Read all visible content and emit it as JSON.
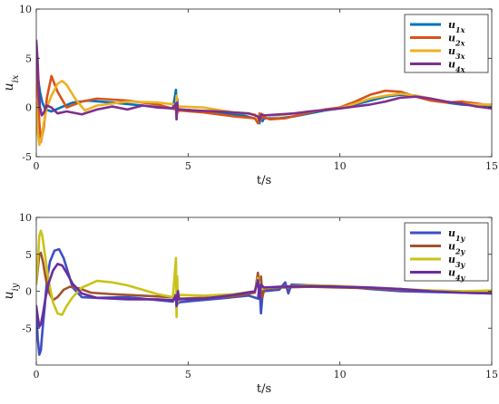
{
  "chart_data": [
    {
      "type": "line",
      "xlabel": "t/s",
      "ylabel": "u_{ix}",
      "xlim": [
        0,
        15
      ],
      "ylim": [
        -5,
        10
      ],
      "xticks": [
        "0",
        "5",
        "10",
        "15"
      ],
      "yticks": [
        "-5",
        "0",
        "5",
        "10"
      ],
      "grid": false,
      "legend_position": "top-right",
      "series": [
        {
          "name": "u_{1x}",
          "color": "#0072BD",
          "x": [
            0,
            0.05,
            0.12,
            0.2,
            0.3,
            0.5,
            0.8,
            1.2,
            1.7,
            2.5,
            3.5,
            4.5,
            4.6,
            4.62,
            4.64,
            4.66,
            4.7,
            5.2,
            6,
            6.8,
            7.3,
            7.35,
            7.4,
            7.45,
            7.5,
            8,
            8.5,
            9,
            9.5,
            10,
            10.5,
            11,
            11.5,
            12,
            12.5,
            13,
            13.5,
            14,
            14.5,
            15
          ],
          "y": [
            6.5,
            3.2,
            1.6,
            0.5,
            -0.2,
            -0.4,
            0.0,
            0.5,
            0.7,
            0.5,
            0.2,
            -0.1,
            1.8,
            -1.2,
            0.9,
            -0.4,
            -0.2,
            -0.3,
            -0.5,
            -0.8,
            -1.2,
            -1.6,
            -0.6,
            -1.4,
            -1.1,
            -1.1,
            -0.9,
            -0.6,
            -0.3,
            -0.1,
            0.3,
            0.7,
            1.1,
            1.3,
            1.2,
            0.9,
            0.5,
            0.3,
            0.2,
            0.1
          ]
        },
        {
          "name": "u_{2x}",
          "color": "#D95319",
          "x": [
            0,
            0.05,
            0.1,
            0.15,
            0.25,
            0.35,
            0.5,
            0.7,
            1,
            1.5,
            2,
            3,
            4,
            4.6,
            4.62,
            4.64,
            4.7,
            5.5,
            6.5,
            7.2,
            7.3,
            7.35,
            7.4,
            7.45,
            7.5,
            7.7,
            8.2,
            9,
            9.5,
            10,
            10.5,
            11,
            11.5,
            12,
            12.5,
            13,
            13.5,
            14,
            14.5,
            15
          ],
          "y": [
            4.5,
            1.5,
            -1.5,
            -3.5,
            -2.0,
            1.0,
            3.2,
            1.6,
            0.0,
            0.6,
            0.9,
            0.7,
            0.3,
            -0.2,
            1.0,
            -0.6,
            -0.3,
            -0.5,
            -0.9,
            -1.1,
            -1.6,
            -0.6,
            -1.3,
            -0.9,
            -1.0,
            -1.2,
            -1.1,
            -0.5,
            -0.2,
            0.0,
            0.6,
            1.3,
            1.7,
            1.6,
            1.1,
            0.7,
            0.5,
            0.6,
            0.4,
            0.2
          ]
        },
        {
          "name": "u_{3x}",
          "color": "#EDB120",
          "x": [
            0,
            0.05,
            0.1,
            0.18,
            0.25,
            0.35,
            0.5,
            0.7,
            0.85,
            1.0,
            1.3,
            1.6,
            2.0,
            3.0,
            4.0,
            4.6,
            4.62,
            4.64,
            4.7,
            5.5,
            6.5,
            7.2,
            7.3,
            7.4,
            7.5,
            8.0,
            9.0,
            10.0,
            10.5,
            11.0,
            11.5,
            12.0,
            12.5,
            13.0,
            13.5,
            14.0,
            14.5,
            15
          ],
          "y": [
            0.5,
            -2.5,
            -3.8,
            -3.0,
            -1.5,
            0.0,
            1.2,
            2.4,
            2.7,
            2.3,
            0.8,
            -0.3,
            0.2,
            0.6,
            0.5,
            0.3,
            1.2,
            -0.6,
            0.1,
            0.0,
            -0.5,
            -0.7,
            -1.2,
            -0.6,
            -0.8,
            -0.8,
            -0.4,
            -0.1,
            0.4,
            0.9,
            1.2,
            1.4,
            1.2,
            0.9,
            0.6,
            0.4,
            0.3,
            0.3
          ]
        },
        {
          "name": "u_{4x}",
          "color": "#7E2F8E",
          "x": [
            0,
            0.04,
            0.08,
            0.12,
            0.18,
            0.25,
            0.35,
            0.5,
            0.7,
            1.0,
            1.5,
            2.0,
            2.5,
            3.0,
            3.5,
            4.0,
            4.5,
            4.6,
            4.62,
            4.64,
            4.66,
            4.7,
            5.2,
            6.0,
            7.0,
            7.3,
            7.35,
            7.4,
            7.5,
            8.0,
            8.5,
            9.0,
            10.0,
            10.5,
            11.0,
            11.5,
            12.0,
            12.5,
            13.0,
            13.5,
            14.0,
            14.5,
            15
          ],
          "y": [
            6.8,
            5.0,
            2.0,
            0.0,
            -0.8,
            -0.5,
            0.2,
            0.0,
            -0.6,
            -0.4,
            -0.7,
            -0.2,
            0.1,
            -0.2,
            0.2,
            0.0,
            -0.1,
            0.4,
            -1.2,
            0.5,
            -0.3,
            -0.2,
            -0.3,
            -0.4,
            -0.6,
            -0.9,
            -1.3,
            -0.7,
            -0.8,
            -0.7,
            -0.6,
            -0.4,
            -0.1,
            0.1,
            0.3,
            0.6,
            1.0,
            1.1,
            0.9,
            0.6,
            0.4,
            0.1,
            -0.1
          ]
        }
      ]
    },
    {
      "type": "line",
      "xlabel": "t/s",
      "ylabel": "u_{iy}",
      "xlim": [
        0,
        15
      ],
      "ylim": [
        -10,
        10
      ],
      "xticks": [
        "0",
        "5",
        "10",
        "15"
      ],
      "yticks": [
        "-5",
        "0",
        "5",
        "10"
      ],
      "grid": false,
      "legend_position": "top-right",
      "series": [
        {
          "name": "u_{1y}",
          "color": "#3E4FC4",
          "x": [
            0,
            0.05,
            0.1,
            0.15,
            0.2,
            0.28,
            0.35,
            0.45,
            0.6,
            0.75,
            0.9,
            1.05,
            1.2,
            1.5,
            2.0,
            3.0,
            4.0,
            4.5,
            4.6,
            4.62,
            4.64,
            4.66,
            4.7,
            5.2,
            6.0,
            7.0,
            7.3,
            7.35,
            7.4,
            7.45,
            7.5,
            8.0,
            8.2,
            8.3,
            8.4,
            9.0,
            10.0,
            10.5,
            11.0,
            12.0,
            13.0,
            14.0,
            15.0
          ],
          "y": [
            -3.0,
            -6.5,
            -8.6,
            -8.0,
            -5.5,
            -2.0,
            1.5,
            4.0,
            5.5,
            5.7,
            4.5,
            2.5,
            0.5,
            -0.8,
            -0.9,
            -0.8,
            -1.2,
            -1.4,
            -0.6,
            -2.5,
            0.4,
            -1.7,
            -1.5,
            -1.3,
            -1.0,
            -0.6,
            -1.0,
            0.8,
            -3.0,
            -0.5,
            0.0,
            0.2,
            1.2,
            -0.3,
            0.9,
            0.8,
            0.7,
            0.5,
            0.3,
            0.0,
            -0.1,
            -0.2,
            -0.3
          ]
        },
        {
          "name": "u_{2y}",
          "color": "#A2522A",
          "x": [
            0,
            0.05,
            0.1,
            0.15,
            0.22,
            0.3,
            0.4,
            0.55,
            0.7,
            0.9,
            1.1,
            1.4,
            1.8,
            2.5,
            3.5,
            4.5,
            4.6,
            4.62,
            4.66,
            4.7,
            5.5,
            6.5,
            7.2,
            7.3,
            7.35,
            7.4,
            7.45,
            7.5,
            8.0,
            9.0,
            10.0,
            11.0,
            12.0,
            13.0,
            14.0,
            15.0
          ],
          "y": [
            1.0,
            3.0,
            5.0,
            5.2,
            4.0,
            2.0,
            0.0,
            -1.2,
            -0.8,
            0.2,
            0.6,
            0.4,
            -0.2,
            -0.4,
            -0.6,
            -0.8,
            -0.4,
            -1.8,
            0.2,
            -1.0,
            -0.9,
            -0.7,
            -0.2,
            2.5,
            -0.5,
            2.0,
            -0.8,
            0.3,
            0.5,
            0.6,
            0.5,
            0.4,
            0.2,
            0.1,
            0.0,
            -0.1
          ]
        },
        {
          "name": "u_{3y}",
          "color": "#C9C318",
          "x": [
            0,
            0.05,
            0.1,
            0.15,
            0.2,
            0.3,
            0.4,
            0.55,
            0.7,
            0.85,
            1.0,
            1.2,
            1.5,
            2.0,
            2.5,
            3.0,
            3.5,
            4.0,
            4.5,
            4.6,
            4.62,
            4.64,
            4.66,
            4.7,
            5.5,
            6.5,
            7.2,
            7.3,
            7.4,
            7.5,
            8.0,
            9.0,
            10.0,
            11.0,
            12.0,
            13.0,
            14.0,
            15.0
          ],
          "y": [
            1.0,
            4.0,
            7.5,
            8.2,
            7.5,
            4.5,
            1.5,
            -1.5,
            -3.0,
            -3.2,
            -2.0,
            -0.8,
            0.5,
            1.4,
            1.2,
            0.8,
            0.2,
            -0.4,
            -0.8,
            4.5,
            -3.5,
            2.0,
            -1.5,
            -0.5,
            -0.6,
            -0.4,
            0.0,
            1.8,
            0.2,
            0.4,
            0.6,
            0.8,
            0.7,
            0.5,
            0.3,
            0.1,
            0.0,
            0.1
          ]
        },
        {
          "name": "u_{4y}",
          "color": "#6A2DA0",
          "x": [
            0,
            0.05,
            0.1,
            0.15,
            0.22,
            0.3,
            0.4,
            0.55,
            0.7,
            0.85,
            1.0,
            1.2,
            1.5,
            2.0,
            3.0,
            4.0,
            4.5,
            4.6,
            4.62,
            4.66,
            4.7,
            5.5,
            6.5,
            7.2,
            7.3,
            7.35,
            7.4,
            7.5,
            8.0,
            9.0,
            10.0,
            11.0,
            12.0,
            13.0,
            14.0,
            15.0
          ],
          "y": [
            -2.0,
            -3.5,
            -4.8,
            -4.5,
            -3.0,
            -1.0,
            1.0,
            2.8,
            3.7,
            3.5,
            2.5,
            1.0,
            -0.3,
            -0.9,
            -1.1,
            -1.1,
            -1.2,
            -0.6,
            -2.0,
            0.0,
            -1.1,
            -1.0,
            -0.5,
            0.0,
            1.5,
            -1.0,
            0.9,
            0.5,
            0.6,
            0.7,
            0.6,
            0.5,
            0.3,
            0.0,
            -0.2,
            -0.3
          ]
        }
      ]
    }
  ]
}
